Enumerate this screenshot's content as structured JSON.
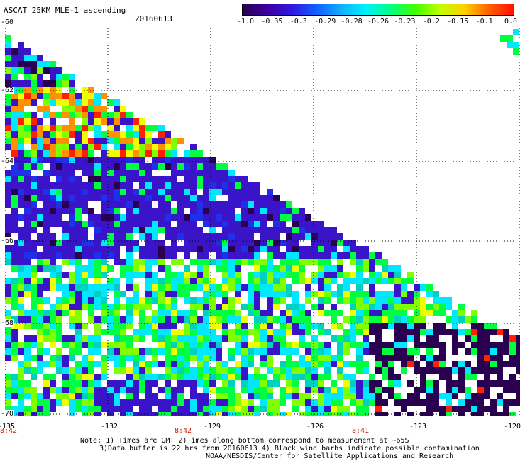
{
  "header": {
    "title": "ASCAT 25KM MLE-1 ascending",
    "date": "20160613"
  },
  "colorbar": {
    "labels": [
      "-1.0",
      "-0.35",
      "-0.3",
      "-0.29",
      "-0.28",
      "-0.26",
      "-0.23",
      "-0.2",
      "-0.15",
      "-0.1",
      "0.0"
    ],
    "colors": [
      "#2a0050",
      "#3c00a0",
      "#3018e0",
      "#1060ff",
      "#10b0ff",
      "#00f0ff",
      "#00ff80",
      "#40ff00",
      "#c0ff00",
      "#ffd000",
      "#ff6000",
      "#ff1000"
    ]
  },
  "axes": {
    "lat_labels": [
      "-60",
      "-62",
      "-64",
      "-66",
      "-68",
      "-70"
    ],
    "lon_labels": [
      "-135",
      "-132",
      "-129",
      "-126",
      "-123",
      "-120"
    ]
  },
  "time_labels": [
    "8:42",
    "8:42",
    "8:41"
  ],
  "notes": {
    "line1": "Note: 1) Times are GMT 2)Times along bottom correspond to measurement at ~65S",
    "line2": "3)Data buffer is 22 hrs from 20160613 4) Black wind barbs indicate possible contamination",
    "line3": "NOAA/NESDIS/Center for Satellite Applications and Research"
  },
  "palette": {
    "white": "#ffffff",
    "darkpurple": "#2a0050",
    "purple": "#3c00a0",
    "violet": "#3a14c8",
    "blue": "#2030e8",
    "cyan": "#00e8ff",
    "teal": "#00d0c0",
    "green": "#00ff40",
    "lime": "#80ff00",
    "yellow": "#f0ff00",
    "orange": "#ff9000",
    "red": "#ff2000"
  }
}
